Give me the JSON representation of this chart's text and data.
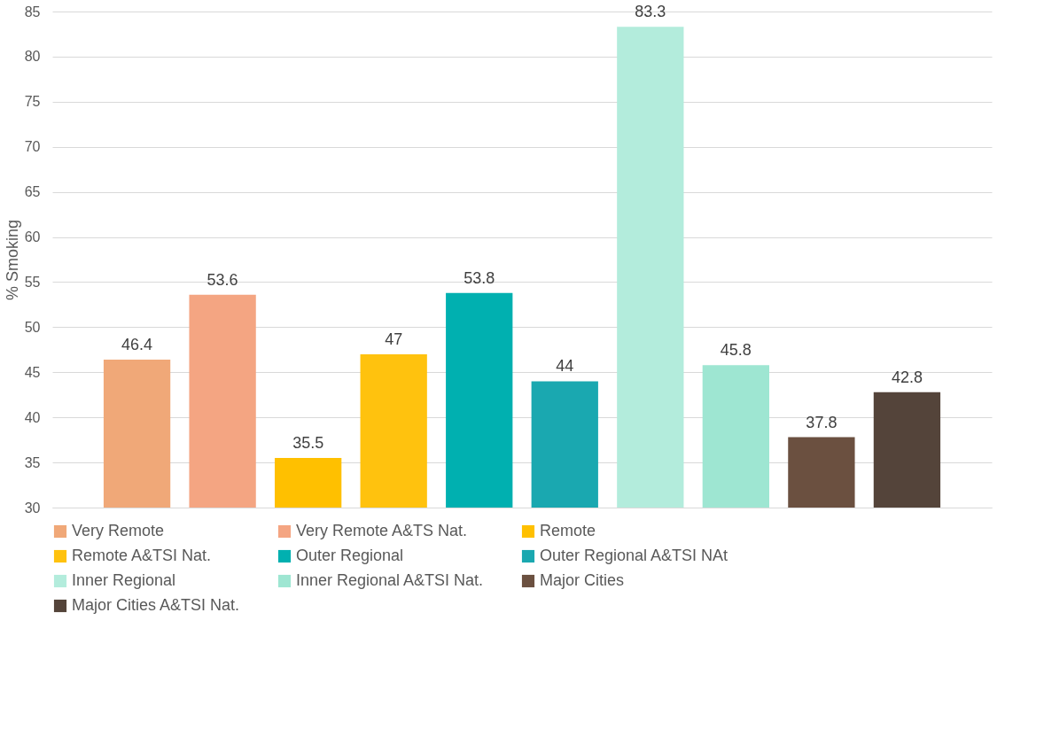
{
  "chart_data": {
    "type": "bar",
    "ylabel": "% Smoking",
    "categories": [
      null,
      null,
      null,
      null,
      null,
      null,
      null,
      null,
      null,
      null
    ],
    "series": [
      {
        "name": "Very Remote",
        "color": "#f0a878",
        "values": [
          46.4,
          null,
          null,
          null,
          null,
          null,
          null,
          null,
          null,
          null
        ]
      },
      {
        "name": "Very Remote A&TS Nat.",
        "color": "#f4a582",
        "values": [
          null,
          53.6,
          null,
          null,
          null,
          null,
          null,
          null,
          null,
          null
        ]
      },
      {
        "name": "Remote",
        "color": "#ffc000",
        "values": [
          null,
          null,
          35.5,
          null,
          null,
          null,
          null,
          null,
          null,
          null
        ]
      },
      {
        "name": "Remote A&TSI Nat.",
        "color": "#ffc20e",
        "values": [
          null,
          null,
          null,
          47,
          null,
          null,
          null,
          null,
          null,
          null
        ]
      },
      {
        "name": "Outer Regional",
        "color": "#00b0b0",
        "values": [
          null,
          null,
          null,
          null,
          53.8,
          null,
          null,
          null,
          null,
          null
        ]
      },
      {
        "name": "Outer Regional A&TSI NAt",
        "color": "#1aa8b0",
        "values": [
          null,
          null,
          null,
          null,
          null,
          44,
          null,
          null,
          null,
          null
        ]
      },
      {
        "name": "Inner Regional",
        "color": "#b3ecdc",
        "values": [
          null,
          null,
          null,
          null,
          null,
          null,
          83.3,
          null,
          null,
          null
        ]
      },
      {
        "name": "Inner Regional A&TSI Nat.",
        "color": "#9ee6d2",
        "values": [
          null,
          null,
          null,
          null,
          null,
          null,
          null,
          45.8,
          null,
          null
        ]
      },
      {
        "name": "Major Cities",
        "color": "#6b5040",
        "values": [
          null,
          null,
          null,
          null,
          null,
          null,
          null,
          null,
          37.8,
          null
        ]
      },
      {
        "name": "Major Cities A&TSI Nat.",
        "color": "#54443a",
        "values": [
          null,
          null,
          null,
          null,
          null,
          null,
          null,
          null,
          null,
          42.8
        ]
      }
    ],
    "ylim": [
      30,
      85
    ],
    "yticks": [
      30,
      35,
      40,
      45,
      50,
      55,
      60,
      65,
      70,
      75,
      80,
      85
    ],
    "grid": "y",
    "legend": "bottom",
    "tick_labels": "y",
    "data_labels": true
  }
}
